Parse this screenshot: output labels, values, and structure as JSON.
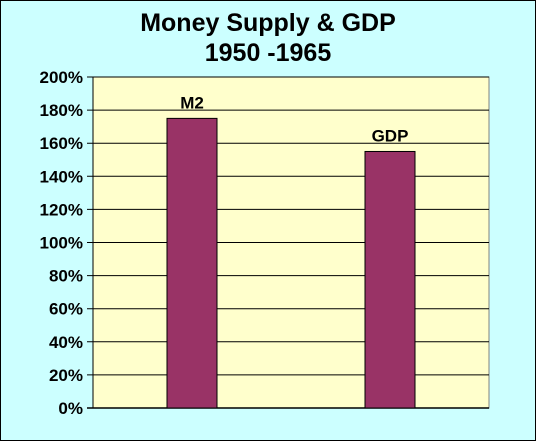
{
  "colors": {
    "background": "#CCFFFF",
    "plot_area": "#FFFFCC",
    "bar_fill": "#993366",
    "gridline": "#000000"
  },
  "chart_data": {
    "type": "bar",
    "title": "Money Supply & GDP",
    "subtitle": "1950 -1965",
    "categories": [
      "M2",
      "GDP"
    ],
    "values": [
      175,
      155
    ],
    "value_unit": "%",
    "ylim": [
      0,
      200
    ],
    "ytick_step": 20,
    "ytick_labels": [
      "0%",
      "20%",
      "40%",
      "60%",
      "80%",
      "100%",
      "120%",
      "140%",
      "160%",
      "180%",
      "200%"
    ],
    "grid": true,
    "legend": "none",
    "data_labels": [
      "M2",
      "GDP"
    ]
  }
}
